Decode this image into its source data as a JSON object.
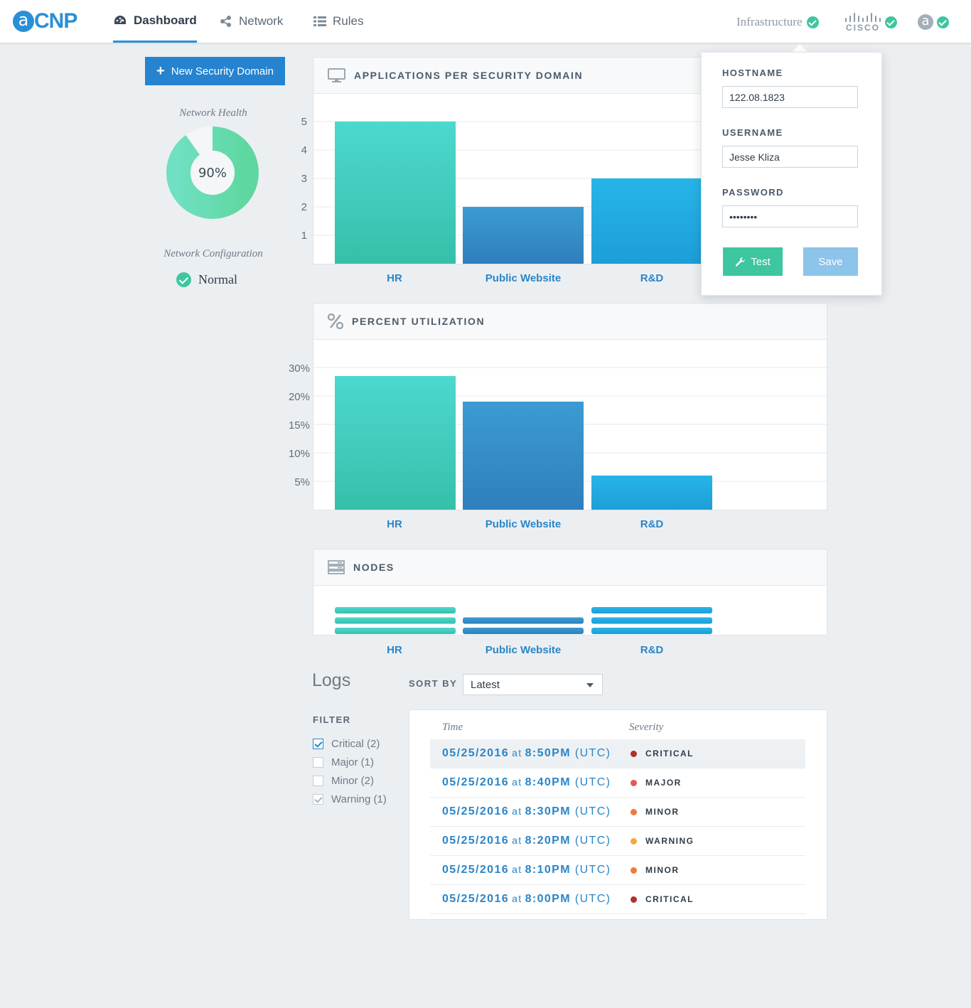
{
  "app": {
    "logo_letter": "a",
    "logo_text": "CNP",
    "brand_color": "#2a8fd6"
  },
  "nav": {
    "items": [
      {
        "label": "Dashboard",
        "icon": "dashboard-icon",
        "active": true
      },
      {
        "label": "Network",
        "icon": "share-icon",
        "active": false
      },
      {
        "label": "Rules",
        "icon": "list-icon",
        "active": false
      }
    ]
  },
  "status": {
    "infrastructure_label": "Infrastructure",
    "cisco_label": "CISCO",
    "user_initial": "a"
  },
  "sidebar": {
    "new_domain_label": "New Security Domain",
    "health_caption": "Network Health",
    "health_value": "90%",
    "health_fraction": 0.9,
    "config_caption": "Network Configuration",
    "config_status": "Normal"
  },
  "panels": {
    "apps_title": "APPLICATIONS PER SECURITY DOMAIN",
    "util_title": "PERCENT UTILIZATION",
    "nodes_title": "NODES"
  },
  "chart_data": [
    {
      "type": "bar",
      "title": "APPLICATIONS PER SECURITY DOMAIN",
      "categories": [
        "HR",
        "Public Website",
        "R&D"
      ],
      "values": [
        5,
        2,
        3
      ],
      "y_ticks": [
        "1",
        "2",
        "3",
        "4",
        "5"
      ],
      "ylim": [
        0,
        5
      ],
      "colors": [
        "#46d0c2",
        "#3489c8",
        "#22a8e2"
      ]
    },
    {
      "type": "bar",
      "title": "PERCENT UTILIZATION",
      "categories": [
        "HR",
        "Public Website",
        "R&D"
      ],
      "values": [
        27,
        19,
        6
      ],
      "y_ticks": [
        "5%",
        "10%",
        "15%",
        "20%",
        "30%"
      ],
      "colors": [
        "#46d0c2",
        "#3489c8",
        "#22a8e2"
      ]
    },
    {
      "type": "bar",
      "title": "NODES",
      "categories": [
        "HR",
        "Public Website",
        "R&D"
      ],
      "values": [
        3,
        2,
        3
      ],
      "colors": [
        "#46d0c2",
        "#3489c8",
        "#22a8e2"
      ]
    }
  ],
  "popup": {
    "hostname_label": "HOSTNAME",
    "hostname_value": "122.08.1823",
    "username_label": "USERNAME",
    "username_value": "Jesse Kliza",
    "password_label": "PASSWORD",
    "password_value": "••••••••",
    "test_label": "Test",
    "save_label": "Save"
  },
  "logs": {
    "title": "Logs",
    "sort_label": "SORT BY",
    "sort_value": "Latest",
    "filter_label": "FILTER",
    "filters": [
      {
        "label": "Critical (2)",
        "checked": true
      },
      {
        "label": "Major (1)",
        "checked": false
      },
      {
        "label": "Minor (2)",
        "checked": false
      },
      {
        "label": "Warning (1)",
        "checked": true
      }
    ],
    "col_time": "Time",
    "col_severity": "Severity",
    "rows": [
      {
        "date": "05/25/2016",
        "at": "at",
        "time": "8:50PM",
        "tz": "(UTC)",
        "severity": "CRITICAL",
        "color": "#b2312e"
      },
      {
        "date": "05/25/2016",
        "at": "at",
        "time": "8:40PM",
        "tz": "(UTC)",
        "severity": "MAJOR",
        "color": "#e25a52"
      },
      {
        "date": "05/25/2016",
        "at": "at",
        "time": "8:30PM",
        "tz": "(UTC)",
        "severity": "MINOR",
        "color": "#f07a3a"
      },
      {
        "date": "05/25/2016",
        "at": "at",
        "time": "8:20PM",
        "tz": "(UTC)",
        "severity": "WARNING",
        "color": "#f5a93c"
      },
      {
        "date": "05/25/2016",
        "at": "at",
        "time": "8:10PM",
        "tz": "(UTC)",
        "severity": "MINOR",
        "color": "#f07a3a"
      },
      {
        "date": "05/25/2016",
        "at": "at",
        "time": "8:00PM",
        "tz": "(UTC)",
        "severity": "CRITICAL",
        "color": "#b2312e"
      }
    ]
  }
}
